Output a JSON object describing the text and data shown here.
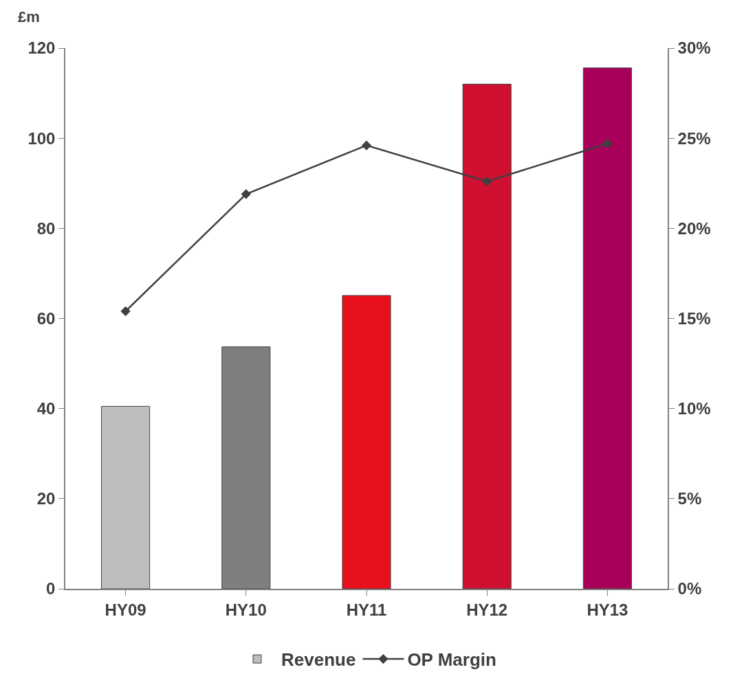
{
  "chart_data": {
    "type": "bar",
    "ylabel": "£m",
    "categories": [
      "HY09",
      "HY10",
      "HY11",
      "HY12",
      "HY13"
    ],
    "series": [
      {
        "name": "Revenue",
        "colors": [
          "#bdbdbd",
          "#7f7f7f",
          "#e8101c",
          "#cf1030",
          "#a8005a"
        ],
        "values": [
          40.5,
          53.7,
          65.1,
          112,
          115.6
        ]
      },
      {
        "name": "OP Margin",
        "type": "line",
        "axis": "y2",
        "color": "#404040",
        "values": [
          15.4,
          21.9,
          24.6,
          22.6,
          24.7
        ]
      }
    ],
    "ylim": [
      0,
      120
    ],
    "yticks": [
      0,
      20,
      40,
      60,
      80,
      100,
      120
    ],
    "y2lim": [
      0,
      30
    ],
    "y2ticks": [
      {
        "value": 0,
        "label": "0%"
      },
      {
        "value": 5,
        "label": "5%"
      },
      {
        "value": 10,
        "label": "10%"
      },
      {
        "value": 15,
        "label": "15%"
      },
      {
        "value": 20,
        "label": "20%"
      },
      {
        "value": 25,
        "label": "25%"
      },
      {
        "value": 30,
        "label": "30%"
      }
    ],
    "grid": false,
    "legend": "bottom",
    "marker": "diamond",
    "line_style": "solid"
  }
}
